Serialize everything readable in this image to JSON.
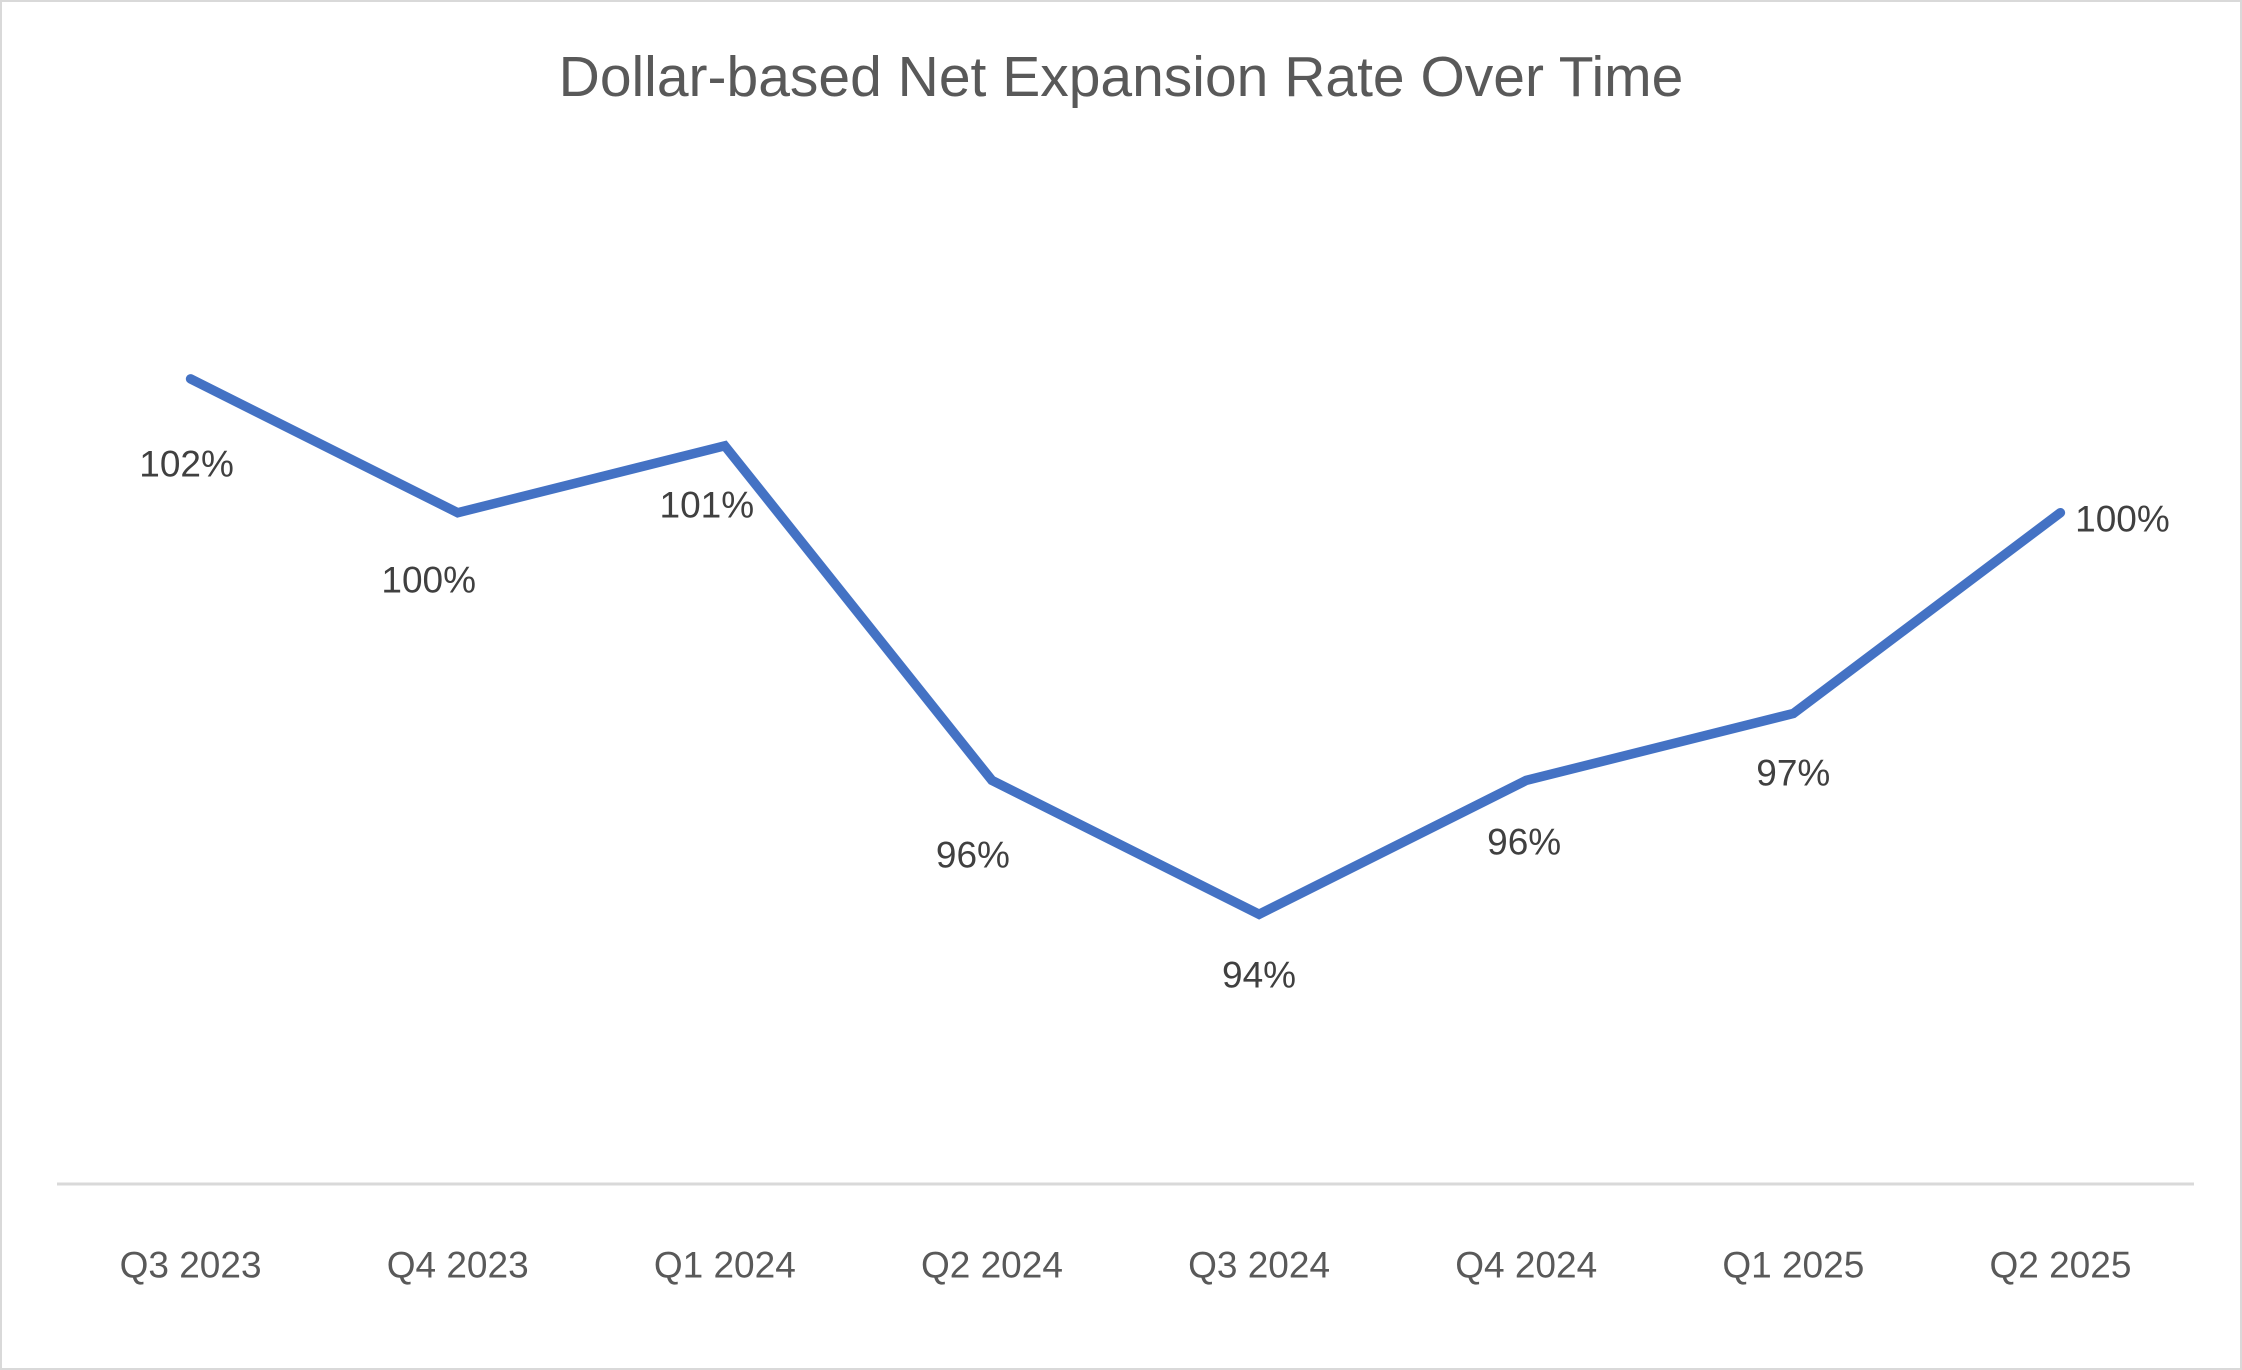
{
  "chart_data": {
    "type": "line",
    "title": "Dollar-based Net Expansion Rate Over Time",
    "categories": [
      "Q3 2023",
      "Q4 2023",
      "Q1 2024",
      "Q2 2024",
      "Q3 2024",
      "Q4 2024",
      "Q1 2025",
      "Q2 2025"
    ],
    "values": [
      102,
      100,
      101,
      96,
      94,
      96,
      97,
      100
    ],
    "data_labels": [
      "102%",
      "100%",
      "101%",
      "96%",
      "94%",
      "96%",
      "97%",
      "100%"
    ],
    "ylim": [
      90,
      104
    ],
    "xlabel": "",
    "ylabel": "",
    "grid": false,
    "legend": false,
    "colors": {
      "line": "#4472C4",
      "axis_line": "#D9D9D9",
      "title_text": "#595959",
      "data_label_text": "#404040",
      "axis_label_text": "#595959",
      "frame_border": "#D9D9D9",
      "background": "#FFFFFF"
    }
  }
}
